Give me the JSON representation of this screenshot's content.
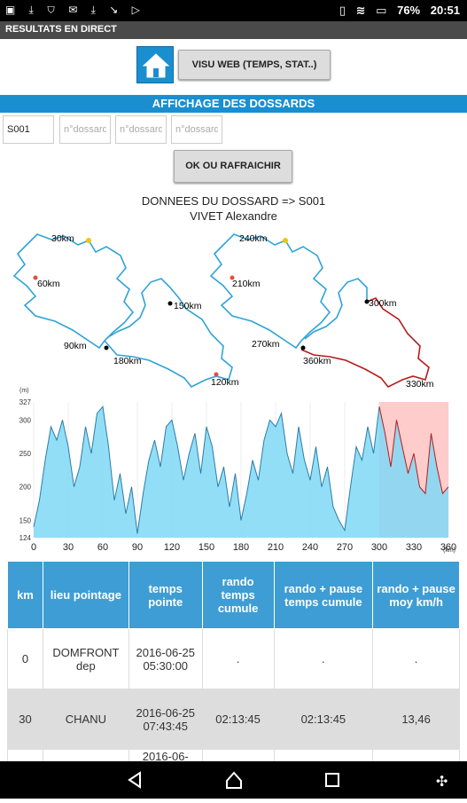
{
  "status_bar": {
    "battery": "76%",
    "time": "20:51",
    "left_icons": [
      "photo-icon",
      "download-icon",
      "shield-icon",
      "mail-icon",
      "download-icon",
      "missed-call-icon",
      "play-icon"
    ]
  },
  "app_title": "RESULTATS EN DIRECT",
  "visu_button": "VISU WEB (TEMPS, STAT..)",
  "section_title": "AFFICHAGE DES DOSSARDS",
  "dossard_inputs": [
    {
      "value": "S001",
      "placeholder": ""
    },
    {
      "value": "",
      "placeholder": "n°dossard"
    },
    {
      "value": "",
      "placeholder": "n°dossard"
    },
    {
      "value": "",
      "placeholder": "n°dossard"
    }
  ],
  "ok_button": "OK OU RAFRAICHIR",
  "dossard_info": {
    "line1": "DONNEES DU DOSSARD => S001",
    "line2": "VIVET Alexandre"
  },
  "map": {
    "left_labels": [
      "30km",
      "60km",
      "90km",
      "120km",
      "150km",
      "180km"
    ],
    "right_labels": [
      "240km",
      "210km",
      "270km",
      "360km",
      "330km",
      "300km"
    ],
    "route_color": "#2fa3d6",
    "done_color": "#b81c1c"
  },
  "chart_data": {
    "type": "area",
    "unit_y": "(m)",
    "unit_x": "(km)",
    "y_ticks": [
      124,
      150,
      200,
      250,
      300,
      327
    ],
    "x_ticks": [
      0,
      30,
      60,
      90,
      120,
      150,
      180,
      210,
      240,
      270,
      300,
      330,
      360
    ],
    "xlim": [
      0,
      360
    ],
    "ylim": [
      124,
      327
    ],
    "highlight_from_km": 300,
    "highlight_color": "#ffcccc",
    "fill_color": "#7fd8f5",
    "x": [
      0,
      5,
      10,
      15,
      20,
      25,
      30,
      35,
      40,
      45,
      50,
      55,
      60,
      65,
      70,
      75,
      80,
      85,
      90,
      95,
      100,
      105,
      110,
      115,
      120,
      125,
      130,
      135,
      140,
      145,
      150,
      155,
      160,
      165,
      170,
      175,
      180,
      185,
      190,
      195,
      200,
      205,
      210,
      215,
      220,
      225,
      230,
      235,
      240,
      245,
      250,
      255,
      260,
      265,
      270,
      275,
      280,
      285,
      290,
      295,
      300,
      305,
      310,
      315,
      320,
      325,
      330,
      335,
      340,
      345,
      350,
      355,
      360
    ],
    "y": [
      140,
      180,
      240,
      290,
      270,
      300,
      260,
      200,
      230,
      290,
      250,
      310,
      320,
      260,
      180,
      220,
      160,
      200,
      130,
      190,
      240,
      270,
      230,
      290,
      300,
      260,
      210,
      250,
      280,
      220,
      290,
      260,
      200,
      230,
      170,
      220,
      150,
      190,
      240,
      210,
      270,
      300,
      290,
      310,
      250,
      220,
      290,
      240,
      210,
      260,
      200,
      230,
      170,
      150,
      135,
      200,
      260,
      240,
      290,
      250,
      320,
      280,
      230,
      300,
      260,
      220,
      250,
      200,
      190,
      280,
      230,
      190,
      200
    ]
  },
  "table": {
    "headers": [
      "km",
      "lieu pointage",
      "temps pointe",
      "rando temps cumule",
      "rando + pause temps cumule",
      "rando + pause moy km/h"
    ],
    "rows": [
      [
        "0",
        "DOMFRONT dep",
        "2016-06-25 05:30:00",
        ".",
        ".",
        "."
      ],
      [
        "30",
        "CHANU",
        "2016-06-25 07:43:45",
        "02:13:45",
        "02:13:45",
        "13,46"
      ],
      [
        "",
        "",
        "2016-06-",
        "",
        "",
        ""
      ]
    ]
  }
}
